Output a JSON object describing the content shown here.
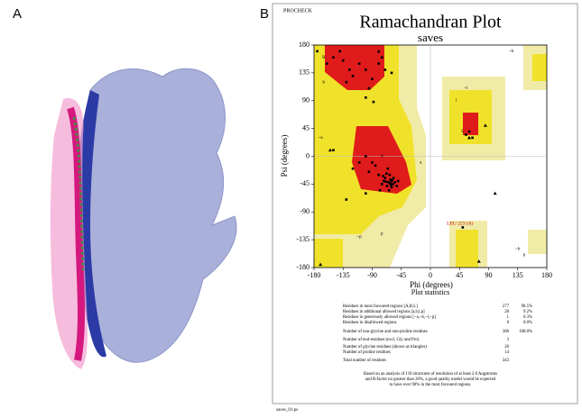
{
  "panel_labels": [
    "A",
    "B"
  ],
  "program": "PROCHECK",
  "file_name": "saves_01.ps",
  "chart_data": {
    "type": "scatter",
    "title": "Ramachandran Plot",
    "subtitle": "saves",
    "x_label": "Phi (degrees)",
    "y_label": "Psi (degrees)",
    "xlim": [
      -180,
      180
    ],
    "ylim": [
      -180,
      180
    ],
    "xticks": [
      -180,
      -135,
      -90,
      -45,
      0,
      45,
      90,
      135,
      180
    ],
    "yticks": [
      -180,
      -135,
      -90,
      -45,
      0,
      45,
      90,
      135,
      180
    ],
    "color": "#000000",
    "x": [
      -60,
      -65,
      -62,
      -70,
      -58,
      -67,
      -63,
      -72,
      -55,
      -60,
      -68,
      -75,
      -57,
      -64,
      -80,
      -52,
      -66,
      -90,
      -100,
      -85,
      -95,
      -110,
      -120,
      -78,
      -50,
      -62,
      -69,
      -73,
      -59,
      -61,
      -120,
      -135,
      -100,
      -80,
      -150,
      -140,
      -90,
      -110,
      -70,
      -125,
      -160,
      -95,
      -130,
      -75,
      -100,
      -88,
      -60,
      60,
      55,
      65,
      -150,
      -175,
      -100,
      -130,
      50
    ],
    "values": [
      -40,
      -42,
      -38,
      -35,
      -45,
      -48,
      -30,
      -40,
      -42,
      -50,
      -28,
      -45,
      -35,
      -55,
      -30,
      -48,
      -20,
      -10,
      0,
      -15,
      -25,
      -10,
      -20,
      -55,
      -40,
      -44,
      -41,
      -32,
      -38,
      -47,
      130,
      155,
      140,
      150,
      160,
      170,
      125,
      150,
      140,
      140,
      150,
      110,
      120,
      160,
      95,
      88,
      135,
      40,
      35,
      30,
      10,
      170,
      -60,
      -70,
      -115
    ],
    "triangles": {
      "x": [
        85,
        75,
        -80,
        -170,
        100,
        -155,
        60
      ],
      "values": [
        50,
        -170,
        170,
        -175,
        -60,
        10,
        30
      ]
    },
    "annotation": {
      "text": "LEU 223 (A)",
      "x": 50,
      "y": -115
    },
    "region_labels": [
      {
        "text": "B",
        "x": -165,
        "y": 160
      },
      {
        "text": "b",
        "x": -165,
        "y": 120
      },
      {
        "text": "A",
        "x": -75,
        "y": 0
      },
      {
        "text": "a",
        "x": -15,
        "y": -10
      },
      {
        "text": "L",
        "x": 50,
        "y": 40
      },
      {
        "text": "l",
        "x": 40,
        "y": 90
      },
      {
        "text": "~b",
        "x": 125,
        "y": 170
      },
      {
        "text": "~l",
        "x": 55,
        "y": 110
      },
      {
        "text": "~p",
        "x": -110,
        "y": -130
      },
      {
        "text": "~a",
        "x": -170,
        "y": 30
      },
      {
        "text": "p",
        "x": -75,
        "y": -125
      },
      {
        "text": "b",
        "x": 145,
        "y": -160
      },
      {
        "text": "~b",
        "x": 135,
        "y": -150
      }
    ]
  },
  "statistics": {
    "title": "Plot statistics",
    "rows": [
      [
        "Residues in most favoured regions [A,B,L]",
        "277",
        "90.5%"
      ],
      [
        "Residues in additional allowed regions [a,b,l,p]",
        "28",
        "9.2%"
      ],
      [
        "Residues in generously allowed regions [~a,~b,~l,~p]",
        "1",
        "0.3%"
      ],
      [
        "Residues in disallowed regions",
        "0",
        "0.0%"
      ],
      [
        "Number of non-glycine and non-proline residues",
        "306",
        "100.0%"
      ],
      [
        "Number of end-residues (excl. Gly and Pro)",
        "3",
        ""
      ],
      [
        "Number of glycine residues (shown as triangles)",
        "20",
        ""
      ],
      [
        "Number of proline residues",
        "14",
        ""
      ],
      [
        "Total number of residues",
        "343",
        ""
      ]
    ],
    "footnote": [
      "Based on an analysis of 118 structures of resolution of at least 2.0 Angstroms",
      "and R-factor no greater than 20%, a good quality model would be expected",
      "to have over 90% in the most favoured regions."
    ]
  }
}
